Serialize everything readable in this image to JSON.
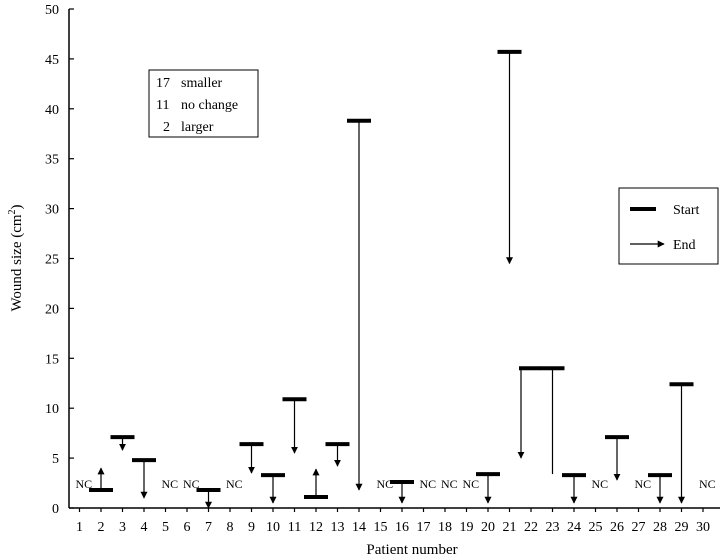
{
  "chart_data": {
    "type": "range",
    "title": "",
    "xlabel": "Patient number",
    "ylabel": "Wound size (cm²)",
    "ylabel_main": "Wound size (cm",
    "ylabel_sup": "2",
    "ylabel_close": ")",
    "ylim": [
      0,
      50
    ],
    "yticks": [
      0,
      5,
      10,
      15,
      20,
      25,
      30,
      35,
      40,
      45,
      50
    ],
    "xticks": [
      1,
      2,
      3,
      4,
      5,
      6,
      7,
      8,
      9,
      10,
      11,
      12,
      13,
      14,
      15,
      16,
      17,
      18,
      19,
      20,
      21,
      22,
      23,
      24,
      25,
      26,
      27,
      28,
      29,
      30
    ],
    "grid": false,
    "patients": [
      {
        "patient": 1,
        "start": null,
        "end": null,
        "nc": true
      },
      {
        "patient": 2,
        "start": 1.8,
        "end": 4.0,
        "nc": false
      },
      {
        "patient": 3,
        "start": 7.1,
        "end": 5.8,
        "nc": false
      },
      {
        "patient": 4,
        "start": 4.8,
        "end": 1.0,
        "nc": false
      },
      {
        "patient": 5,
        "start": null,
        "end": null,
        "nc": true
      },
      {
        "patient": 6,
        "start": null,
        "end": null,
        "nc": true
      },
      {
        "patient": 7,
        "start": 1.8,
        "end": 0.0,
        "nc": false
      },
      {
        "patient": 8,
        "start": null,
        "end": null,
        "nc": true
      },
      {
        "patient": 9,
        "start": 6.4,
        "end": 3.5,
        "nc": false
      },
      {
        "patient": 10,
        "start": 3.3,
        "end": 0.5,
        "nc": false
      },
      {
        "patient": 11,
        "start": 10.9,
        "end": 5.5,
        "nc": false
      },
      {
        "patient": 12,
        "start": 1.1,
        "end": 3.9,
        "nc": false
      },
      {
        "patient": 13,
        "start": 6.4,
        "end": 4.2,
        "nc": false
      },
      {
        "patient": 14,
        "start": 38.8,
        "end": 1.8,
        "nc": false
      },
      {
        "patient": 15,
        "start": null,
        "end": null,
        "nc": true
      },
      {
        "patient": 16,
        "start": 2.6,
        "end": 0.5,
        "nc": false
      },
      {
        "patient": 17,
        "start": null,
        "end": null,
        "nc": true
      },
      {
        "patient": 18,
        "start": null,
        "end": null,
        "nc": true
      },
      {
        "patient": 19,
        "start": null,
        "end": null,
        "nc": true
      },
      {
        "patient": 20,
        "start": 3.4,
        "end": 0.5,
        "nc": false
      },
      {
        "patient": 21,
        "start": 45.7,
        "end": 24.5,
        "nc": false
      },
      {
        "patient": 22,
        "start": 14.0,
        "end": 5.0,
        "nc": false
      },
      {
        "patient": 23,
        "start": 14.0,
        "end": 3.4,
        "nc": false,
        "arrowhead": false
      },
      {
        "patient": 24,
        "start": 3.3,
        "end": 0.5,
        "nc": false
      },
      {
        "patient": 25,
        "start": null,
        "end": null,
        "nc": true
      },
      {
        "patient": 26,
        "start": 7.1,
        "end": 2.8,
        "nc": false
      },
      {
        "patient": 27,
        "start": null,
        "end": null,
        "nc": true
      },
      {
        "patient": 28,
        "start": 3.3,
        "end": 0.5,
        "nc": false
      },
      {
        "patient": 29,
        "start": 12.4,
        "end": 0.5,
        "nc": false
      },
      {
        "patient": 30,
        "start": null,
        "end": null,
        "nc": true
      }
    ],
    "nc_label": "NC",
    "summary": [
      {
        "count": "17",
        "label": "smaller"
      },
      {
        "count": "11",
        "label": "no change"
      },
      {
        "count": "2",
        "label": "larger"
      }
    ],
    "legend": {
      "start_label": "Start",
      "end_label": "End",
      "placement": "right"
    }
  }
}
